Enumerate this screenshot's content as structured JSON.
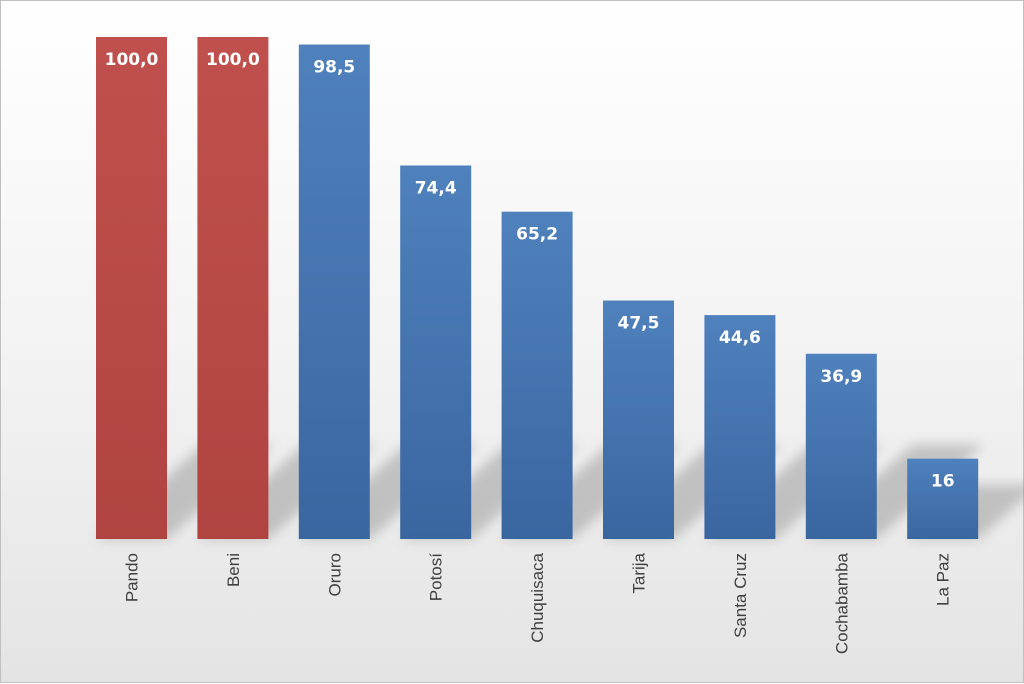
{
  "chart_data": {
    "type": "bar",
    "title": "",
    "xlabel": "",
    "ylabel": "",
    "ylim": [
      0,
      100
    ],
    "grid": false,
    "legend": "none",
    "categories": [
      "Pando",
      "Beni",
      "Oruro",
      "Potosí",
      "Chuquisaca",
      "Tarija",
      "Santa Cruz",
      "Cochabamba",
      "La Paz"
    ],
    "values": [
      100,
      100,
      98.5,
      74.4,
      65.2,
      47.5,
      44.6,
      36.9,
      16
    ],
    "data_labels": [
      "100,0",
      "100,0",
      "98,5",
      "74,4",
      "65,2",
      "47,5",
      "44,6",
      "36,9",
      "16"
    ],
    "colors": {
      "highlight": "#c0504d",
      "highlight_dark": "#b04441",
      "default": "#4f81bd",
      "default_dark": "#3a66a0"
    },
    "highlight_count": 2
  }
}
